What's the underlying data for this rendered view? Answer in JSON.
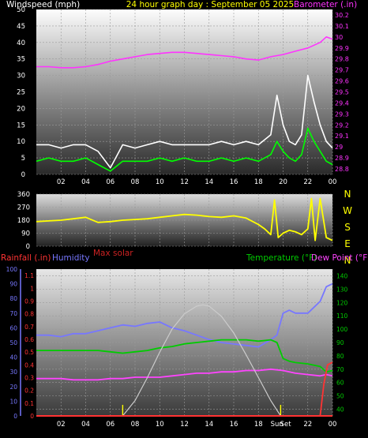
{
  "colors": {
    "background": "#000000",
    "title": "#ffff00",
    "windspeed": "#ffffff",
    "wind_avg": "#00ff00",
    "barometer": "#ff33ff",
    "wind_direction": "#ffff00",
    "rainfall": "#ff3333",
    "humidity": "#7777ff",
    "max_solar": "#cc2222",
    "temperature": "#00cc00",
    "dew_point": "#ff44ff",
    "solar_curve": "#cccccc",
    "axis_text": "#ffffff"
  },
  "chart_data": [
    {
      "type": "line",
      "title": "24 hour graph day : September 05 2025",
      "left_label": "Windspeed (mph)",
      "right_label": "Barometer (.in)",
      "x_ticks": [
        "02",
        "04",
        "06",
        "08",
        "10",
        "12",
        "14",
        "16",
        "18",
        "20",
        "22",
        "00"
      ],
      "y_ticks": [
        "0",
        "5",
        "10",
        "15",
        "20",
        "25",
        "30",
        "35",
        "40",
        "45",
        "50"
      ],
      "ylim": [
        0,
        50
      ],
      "y2_ticks": [
        "28.8",
        "28.9",
        "29",
        "29.1",
        "29.2",
        "29.3",
        "29.4",
        "29.5",
        "29.6",
        "29.7",
        "29.8",
        "29.9",
        "30",
        "30.1",
        "30.2"
      ],
      "y2lim": [
        28.75,
        30.25
      ],
      "grid": true,
      "series": [
        {
          "id": "gust",
          "axis": "left",
          "x": [
            0,
            1,
            2,
            3,
            4,
            5,
            6,
            7,
            8,
            9,
            10,
            11,
            12,
            13,
            14,
            15,
            16,
            17,
            18,
            19,
            19.5,
            20,
            20.5,
            21,
            21.5,
            22,
            22.5,
            23,
            23.5,
            24
          ],
          "y": [
            9,
            9,
            8,
            9,
            9,
            7,
            2,
            9,
            8,
            9,
            10,
            9,
            9,
            9,
            9,
            10,
            9,
            10,
            9,
            12,
            24,
            15,
            10,
            9,
            12,
            30,
            22,
            15,
            10,
            8
          ]
        },
        {
          "id": "average",
          "axis": "left",
          "x": [
            0,
            1,
            2,
            3,
            4,
            5,
            6,
            7,
            8,
            9,
            10,
            11,
            12,
            13,
            14,
            15,
            16,
            17,
            18,
            19,
            19.5,
            20,
            20.5,
            21,
            21.5,
            22,
            22.5,
            23,
            23.5,
            24
          ],
          "y": [
            4,
            5,
            4,
            4,
            5,
            3,
            1,
            4,
            4,
            4,
            5,
            4,
            5,
            4,
            4,
            5,
            4,
            5,
            4,
            6,
            10,
            7,
            5,
            4,
            6,
            14,
            10,
            7,
            4,
            3
          ]
        },
        {
          "id": "barometer",
          "axis": "right",
          "x": [
            0,
            1,
            2,
            3,
            4,
            5,
            6,
            7,
            8,
            9,
            10,
            11,
            12,
            13,
            14,
            15,
            16,
            17,
            18,
            19,
            20,
            21,
            22,
            23,
            23.5,
            24
          ],
          "y": [
            29.73,
            29.73,
            29.72,
            29.72,
            29.73,
            29.75,
            29.78,
            29.8,
            29.82,
            29.84,
            29.85,
            29.86,
            29.86,
            29.85,
            29.84,
            29.83,
            29.82,
            29.8,
            29.79,
            29.82,
            29.84,
            29.87,
            29.9,
            29.95,
            30.0,
            29.98
          ]
        }
      ]
    },
    {
      "type": "line",
      "x_ticks": [],
      "y_ticks": [
        "0",
        "90",
        "180",
        "270",
        "360"
      ],
      "ylim": [
        0,
        360
      ],
      "compass_labels": [
        "N",
        "W",
        "S",
        "E",
        "N"
      ],
      "series": [
        {
          "id": "direction",
          "x": [
            0,
            1,
            2,
            3,
            4,
            5,
            6,
            7,
            8,
            9,
            10,
            11,
            12,
            13,
            14,
            15,
            16,
            17,
            18,
            18.5,
            19,
            19.3,
            19.6,
            20,
            20.5,
            21,
            21.5,
            22,
            22.3,
            22.6,
            23,
            23.5,
            24
          ],
          "y": [
            170,
            175,
            180,
            190,
            200,
            165,
            170,
            180,
            185,
            190,
            200,
            210,
            220,
            215,
            205,
            200,
            210,
            195,
            150,
            120,
            80,
            320,
            60,
            90,
            110,
            100,
            80,
            120,
            330,
            40,
            330,
            60,
            40
          ]
        }
      ]
    },
    {
      "type": "line",
      "left_label": "Rainfall (.in)",
      "humidity_label": "Humidity",
      "max_solar_label": "Max solar",
      "right_label": "Temperature (°F)",
      "dew_label": "Dew Point (°F)",
      "x_ticks": [
        "02",
        "04",
        "06",
        "08",
        "10",
        "12",
        "14",
        "16",
        "18",
        "Sun",
        "Set",
        "22",
        "00"
      ],
      "rain_ticks": [
        "0",
        "0.1",
        "0.2",
        "0.3",
        "0.4",
        "0.5",
        "0.6",
        "0.7",
        "0.8",
        "0.9",
        "1",
        "1.1"
      ],
      "rain_lim": [
        0,
        1.15
      ],
      "humidity_ticks": [
        "0",
        "10",
        "20",
        "30",
        "40",
        "50",
        "60",
        "70",
        "80",
        "90",
        "100"
      ],
      "humidity_lim": [
        0,
        100
      ],
      "temp_ticks": [
        "40",
        "50",
        "60",
        "70",
        "80",
        "90",
        "100",
        "110",
        "120",
        "130",
        "140"
      ],
      "temp_lim": [
        35,
        145
      ],
      "sun_markers": [
        7.0,
        19.8
      ],
      "grid": true,
      "series": [
        {
          "id": "humidity",
          "axis": "humidity",
          "x": [
            0,
            1,
            2,
            3,
            4,
            5,
            6,
            7,
            8,
            9,
            10,
            11,
            12,
            13,
            14,
            15,
            16,
            17,
            18,
            19,
            19.5,
            20,
            20.5,
            21,
            22,
            23,
            23.5,
            24
          ],
          "y": [
            55,
            55,
            54,
            56,
            56,
            58,
            60,
            62,
            61,
            63,
            64,
            60,
            58,
            55,
            52,
            50,
            49,
            48,
            47,
            52,
            55,
            70,
            72,
            70,
            70,
            78,
            88,
            90
          ]
        },
        {
          "id": "temperature",
          "axis": "temp",
          "x": [
            0,
            1,
            2,
            3,
            4,
            5,
            6,
            7,
            8,
            9,
            10,
            11,
            12,
            13,
            14,
            15,
            16,
            17,
            18,
            19,
            19.5,
            20,
            20.5,
            21,
            22,
            23,
            23.5,
            24
          ],
          "y": [
            84,
            84,
            84,
            84,
            84,
            84,
            83,
            82,
            83,
            84,
            86,
            87,
            89,
            90,
            91,
            92,
            92,
            92,
            91,
            92,
            90,
            78,
            76,
            75,
            74,
            72,
            68,
            69
          ]
        },
        {
          "id": "dew_point",
          "axis": "temp",
          "x": [
            0,
            1,
            2,
            3,
            4,
            5,
            6,
            7,
            8,
            9,
            10,
            11,
            12,
            13,
            14,
            15,
            16,
            17,
            18,
            19,
            20,
            21,
            22,
            23,
            23.5,
            24
          ],
          "y": [
            63,
            63,
            63,
            62,
            62,
            62,
            63,
            63,
            64,
            64,
            64,
            65,
            66,
            67,
            67,
            68,
            68,
            69,
            69,
            70,
            69,
            67,
            66,
            65,
            66,
            65
          ]
        },
        {
          "id": "max_solar",
          "axis": "rain",
          "x": [
            7,
            8,
            9,
            10,
            11,
            12,
            13,
            13.5,
            14,
            15,
            16,
            17,
            18,
            19,
            19.8
          ],
          "y": [
            0,
            0.12,
            0.3,
            0.5,
            0.68,
            0.8,
            0.86,
            0.87,
            0.86,
            0.78,
            0.65,
            0.48,
            0.3,
            0.12,
            0
          ]
        },
        {
          "id": "rainfall",
          "axis": "rain",
          "x": [
            0,
            22,
            23,
            23.3,
            23.6,
            24
          ],
          "y": [
            0,
            0,
            0.0,
            0.25,
            0.4,
            0.42
          ]
        }
      ]
    }
  ]
}
